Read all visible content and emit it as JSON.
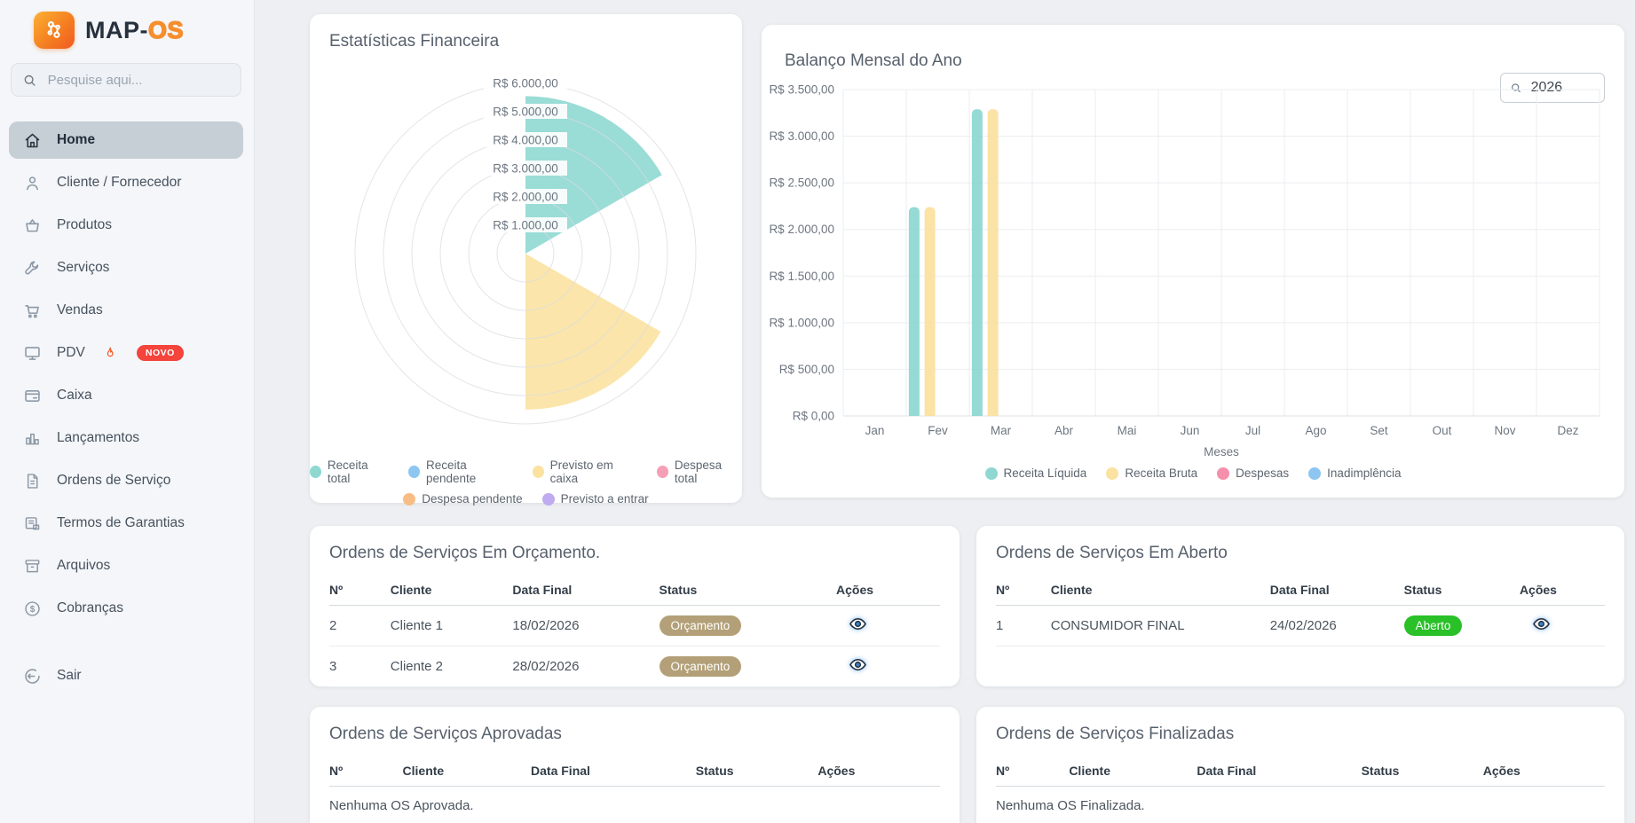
{
  "app": {
    "brand_primary": "MAP-",
    "brand_secondary": "OS"
  },
  "sidebar": {
    "search_placeholder": "Pesquise aqui...",
    "items": [
      {
        "label": "Home",
        "active": true
      },
      {
        "label": "Cliente / Fornecedor"
      },
      {
        "label": "Produtos"
      },
      {
        "label": "Serviços"
      },
      {
        "label": "Vendas"
      },
      {
        "label": "PDV",
        "badge": "NOVO"
      },
      {
        "label": "Caixa"
      },
      {
        "label": "Lançamentos"
      },
      {
        "label": "Ordens de Serviço"
      },
      {
        "label": "Termos de Garantias"
      },
      {
        "label": "Arquivos"
      },
      {
        "label": "Cobranças"
      }
    ],
    "logout_label": "Sair"
  },
  "balance_card": {
    "year_value": "2026"
  },
  "chart_data": [
    {
      "type": "polar_area",
      "title": "Estatísticas Financeira",
      "scale": {
        "min": 0,
        "max": 6000,
        "step": 1000,
        "tick_format": "R$ #.##0,00"
      },
      "tick_labels": [
        "R$ 1.000,00",
        "R$ 2.000,00",
        "R$ 3.000,00",
        "R$ 4.000,00",
        "R$ 5.000,00",
        "R$ 6.000,00"
      ],
      "segments": [
        {
          "label": "Receita total",
          "value": 5550,
          "color": "#8fd8d2"
        },
        {
          "label": "Receita pendente",
          "value": 0,
          "color": "#8dc6f0"
        },
        {
          "label": "Previsto em caixa",
          "value": 5500,
          "color": "#fbe2a1"
        },
        {
          "label": "Despesa total",
          "value": 0,
          "color": "#f79fb6"
        },
        {
          "label": "Despesa pendente",
          "value": 0,
          "color": "#f8bd85"
        },
        {
          "label": "Previsto a entrar",
          "value": 0,
          "color": "#c0aaf0"
        }
      ]
    },
    {
      "type": "bar",
      "title": "Balanço Mensal do Ano",
      "categories": [
        "Jan",
        "Fev",
        "Mar",
        "Abr",
        "Mai",
        "Jun",
        "Jul",
        "Ago",
        "Set",
        "Out",
        "Nov",
        "Dez"
      ],
      "series": [
        {
          "name": "Receita Líquida",
          "color": "#8fd8d2",
          "values": [
            0,
            2240,
            3290,
            0,
            0,
            0,
            0,
            0,
            0,
            0,
            0,
            0
          ]
        },
        {
          "name": "Receita Bruta",
          "color": "#fbe2a1",
          "values": [
            0,
            2240,
            3290,
            0,
            0,
            0,
            0,
            0,
            0,
            0,
            0,
            0
          ]
        },
        {
          "name": "Despesas",
          "color": "#f58fab",
          "values": [
            0,
            0,
            0,
            0,
            0,
            0,
            0,
            0,
            0,
            0,
            0,
            0
          ]
        },
        {
          "name": "Inadimplência",
          "color": "#8dc6f0",
          "values": [
            0,
            0,
            0,
            0,
            0,
            0,
            0,
            0,
            0,
            0,
            0,
            0
          ]
        }
      ],
      "xlabel": "Meses",
      "ylim": [
        0,
        3500
      ],
      "ytick_step": 500,
      "grid": true,
      "legend_position": "bottom"
    }
  ],
  "tables": {
    "orcamento": {
      "title": "Ordens de Serviços Em Orçamento.",
      "headers": [
        "Nº",
        "Cliente",
        "Data Final",
        "Status",
        "Ações"
      ],
      "rows": [
        {
          "n": "2",
          "cliente": "Cliente 1",
          "data_final": "18/02/2026",
          "status": "Orçamento"
        },
        {
          "n": "3",
          "cliente": "Cliente 2",
          "data_final": "28/02/2026",
          "status": "Orçamento"
        }
      ]
    },
    "aberto": {
      "title": "Ordens de Serviços Em Aberto",
      "headers": [
        "Nº",
        "Cliente",
        "Data Final",
        "Status",
        "Ações"
      ],
      "rows": [
        {
          "n": "1",
          "cliente": "CONSUMIDOR FINAL",
          "data_final": "24/02/2026",
          "status": "Aberto"
        }
      ]
    },
    "aprovadas": {
      "title": "Ordens de Serviços Aprovadas",
      "headers": [
        "Nº",
        "Cliente",
        "Data Final",
        "Status",
        "Ações"
      ],
      "empty_text": "Nenhuma OS Aprovada."
    },
    "finalizadas": {
      "title": "Ordens de Serviços Finalizadas",
      "headers": [
        "Nº",
        "Cliente",
        "Data Final",
        "Status",
        "Ações"
      ],
      "empty_text": "Nenhuma OS Finalizada."
    }
  },
  "colors": {
    "teal": "#8fd8d2",
    "yellow": "#fbe2a1",
    "pink": "#f58fab",
    "blue": "#8dc6f0",
    "orange": "#f8bd85",
    "purple": "#c0aaf0",
    "badge_orcamento": "#b3a078",
    "badge_aberto": "#29c028",
    "badge_novo": "#f4443c",
    "active_item": "#c6ced6",
    "logo_orange": "#f47b20"
  }
}
